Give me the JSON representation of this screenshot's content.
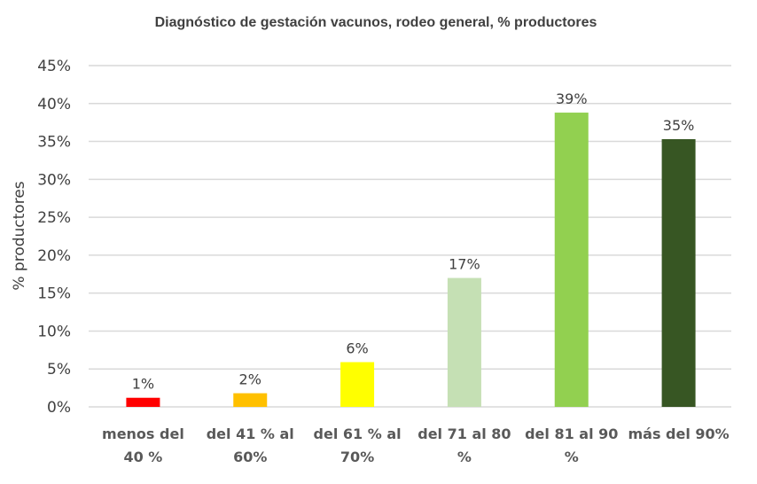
{
  "chart_data": {
    "type": "bar",
    "title": "Diagnóstico de gestación vacunos, rodeo general,  % productores",
    "xlabel": "",
    "ylabel": "% productores",
    "ylim": [
      0,
      45
    ],
    "yticks": [
      "0%",
      "5%",
      "10%",
      "15%",
      "20%",
      "25%",
      "30%",
      "35%",
      "40%",
      "45%"
    ],
    "grid": true,
    "categories": [
      [
        "menos del",
        "40 %"
      ],
      [
        "del 41 % al",
        "60%"
      ],
      [
        "del 61 % al",
        "70%"
      ],
      [
        "del 71 al 80",
        "%"
      ],
      [
        "del 81 al 90",
        "%"
      ],
      [
        "más del 90%"
      ]
    ],
    "values": [
      1.2,
      1.8,
      5.9,
      17.0,
      38.8,
      35.3
    ],
    "data_labels": [
      "1%",
      "2%",
      "6%",
      "17%",
      "39%",
      "35%"
    ],
    "colors": [
      "#ff0000",
      "#ffc000",
      "#ffff00",
      "#c5e0b4",
      "#92d050",
      "#375623"
    ],
    "gridline_color": "#d9d9d9"
  }
}
